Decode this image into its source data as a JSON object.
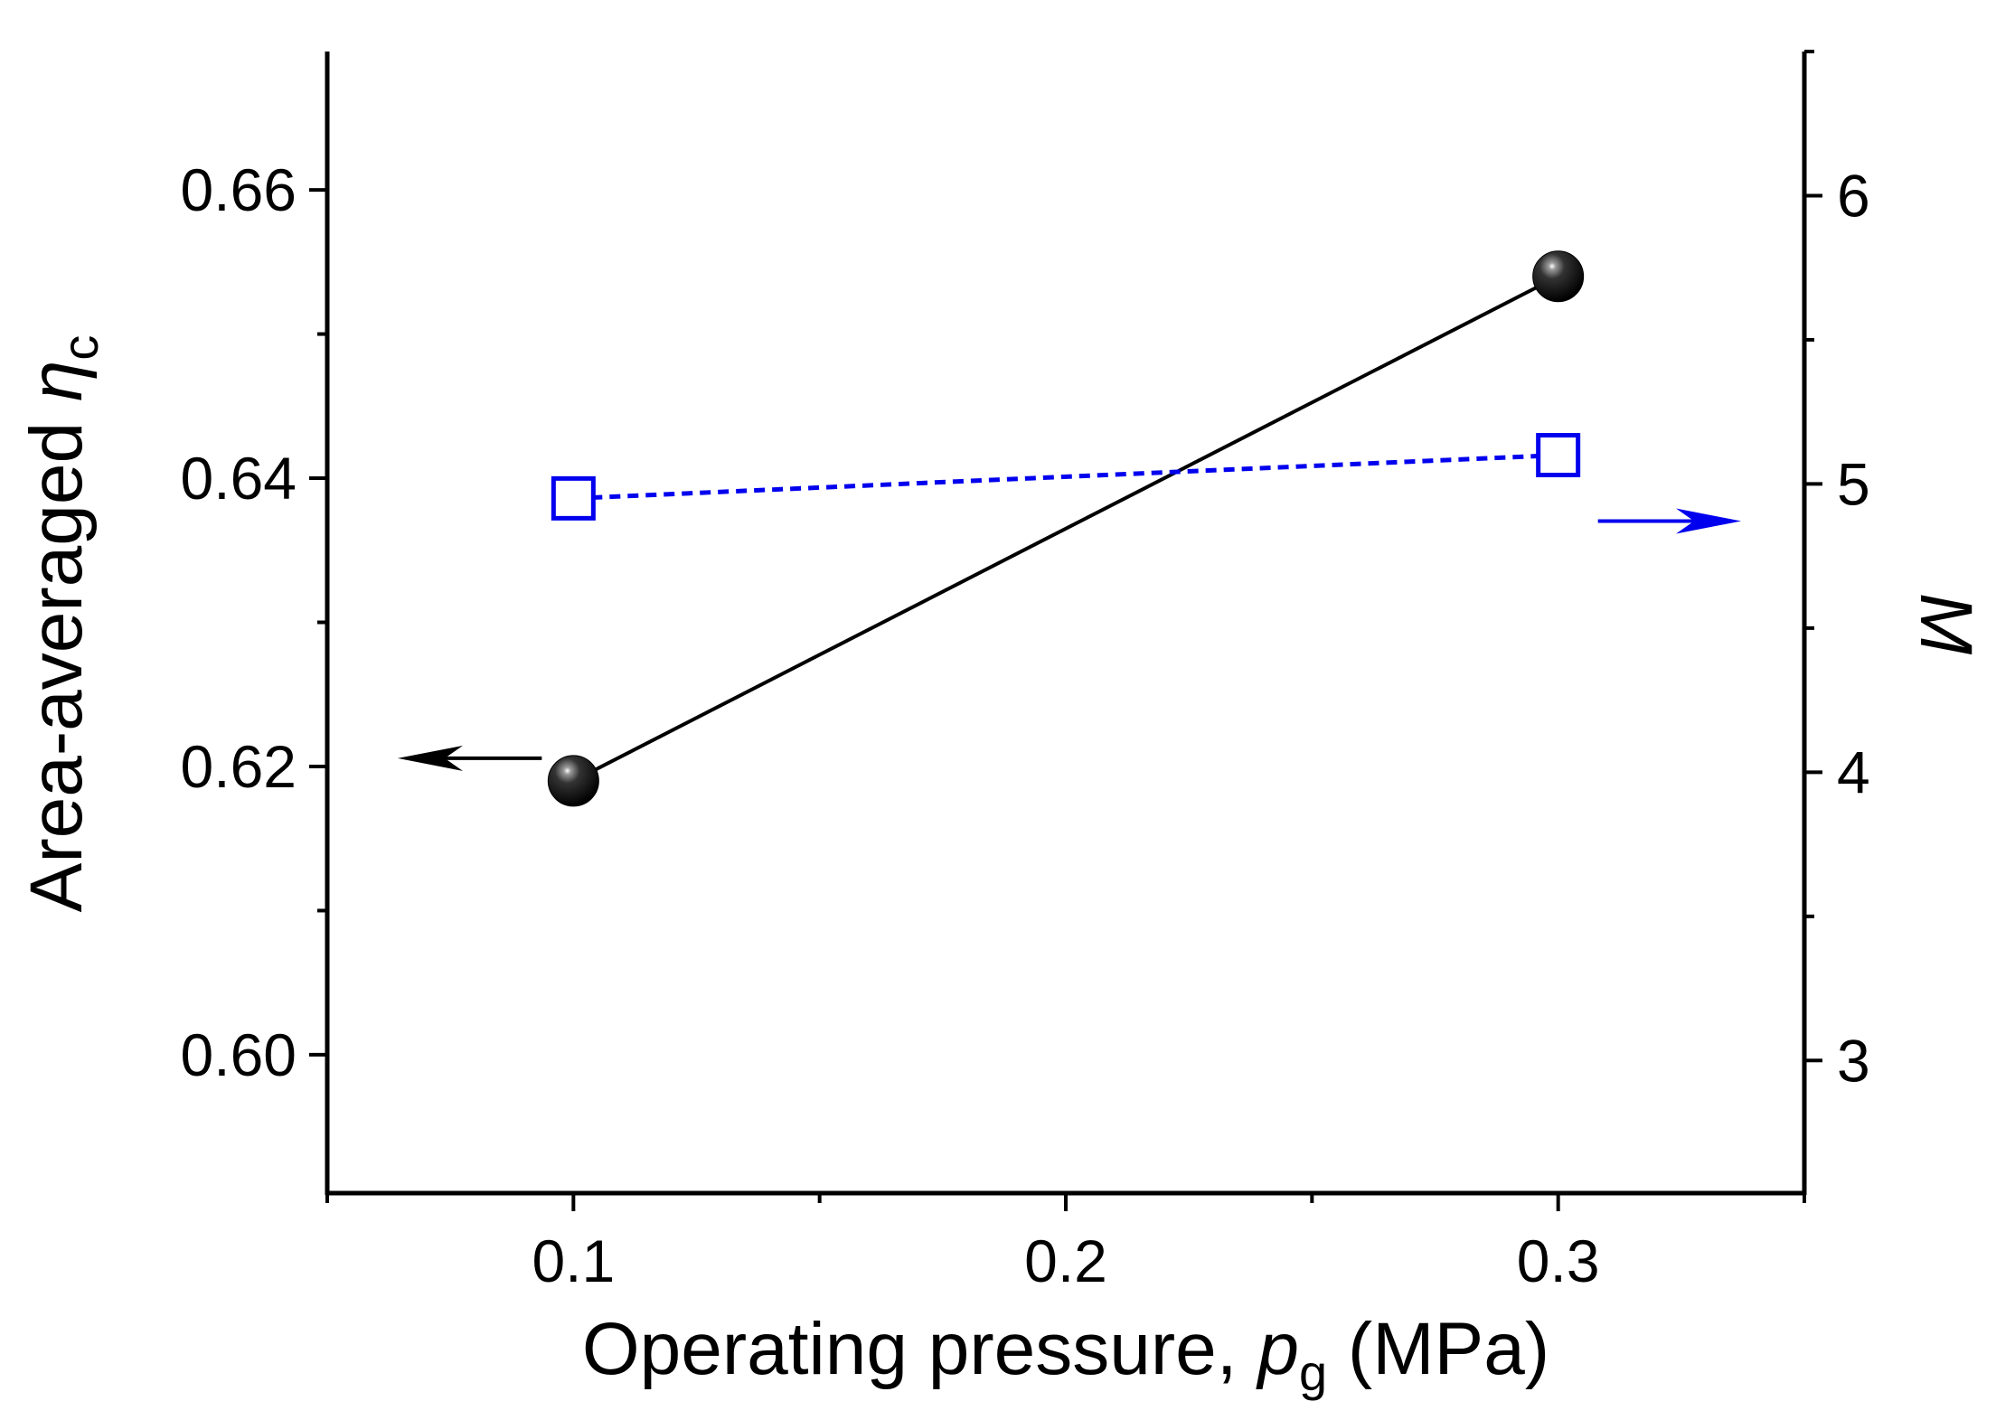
{
  "chart_data": {
    "type": "line",
    "title": "",
    "x": [
      0.1,
      0.3
    ],
    "xlabel": {
      "prefix": "Operating pressure, ",
      "var": "p",
      "sub": "g",
      "suffix": " (MPa)"
    },
    "xlim": [
      0.05,
      0.35
    ],
    "xticks": [
      0.1,
      0.2,
      0.3
    ],
    "xtick_labels": [
      "0.1",
      "0.2",
      "0.3"
    ],
    "y_left": {
      "label": {
        "prefix": "Area-averaged ",
        "var": "η",
        "sub": "c"
      },
      "ylim": [
        0.5904,
        0.6696
      ],
      "ticks": [
        0.6,
        0.62,
        0.64,
        0.66
      ],
      "tick_labels": [
        "0.60",
        "0.62",
        "0.64",
        "0.66"
      ]
    },
    "y_right": {
      "label": "M",
      "ylim": [
        2.54,
        6.5
      ],
      "ticks": [
        3,
        4,
        5,
        6
      ],
      "tick_labels": [
        "3",
        "4",
        "5",
        "6"
      ]
    },
    "series": [
      {
        "name": "Area-averaged ηc",
        "axis": "left",
        "values": [
          0.619,
          0.654
        ],
        "marker": "filled-sphere",
        "line": "solid",
        "color": "#000000"
      },
      {
        "name": "M",
        "axis": "right",
        "values": [
          4.95,
          5.1
        ],
        "marker": "open-square",
        "line": "dashed",
        "color": "#0000ee"
      }
    ],
    "annotations": [
      {
        "type": "arrow",
        "direction": "left",
        "points_to": "left-axis",
        "color": "#000000"
      },
      {
        "type": "arrow",
        "direction": "right",
        "points_to": "right-axis",
        "color": "#0000ee"
      }
    ],
    "grid": false,
    "legend": "none"
  }
}
